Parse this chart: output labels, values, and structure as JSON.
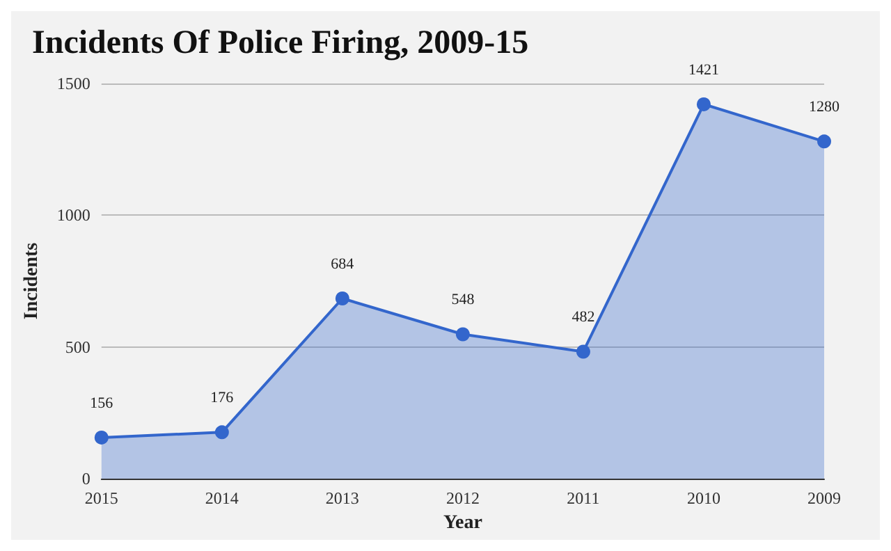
{
  "chart_data": {
    "type": "area",
    "title": "Incidents Of Police Firing, 2009-15",
    "xlabel": "Year",
    "ylabel": "Incidents",
    "categories": [
      "2015",
      "2014",
      "2013",
      "2012",
      "2011",
      "2010",
      "2009"
    ],
    "series": [
      {
        "color": "#3366cc",
        "values": [
          156,
          176,
          684,
          548,
          482,
          1421,
          1280
        ]
      }
    ],
    "ylim": [
      0,
      1500
    ],
    "yticks": [
      0,
      500,
      1000,
      1500
    ],
    "grid": "y",
    "marker": "circle",
    "data_labels": true
  }
}
